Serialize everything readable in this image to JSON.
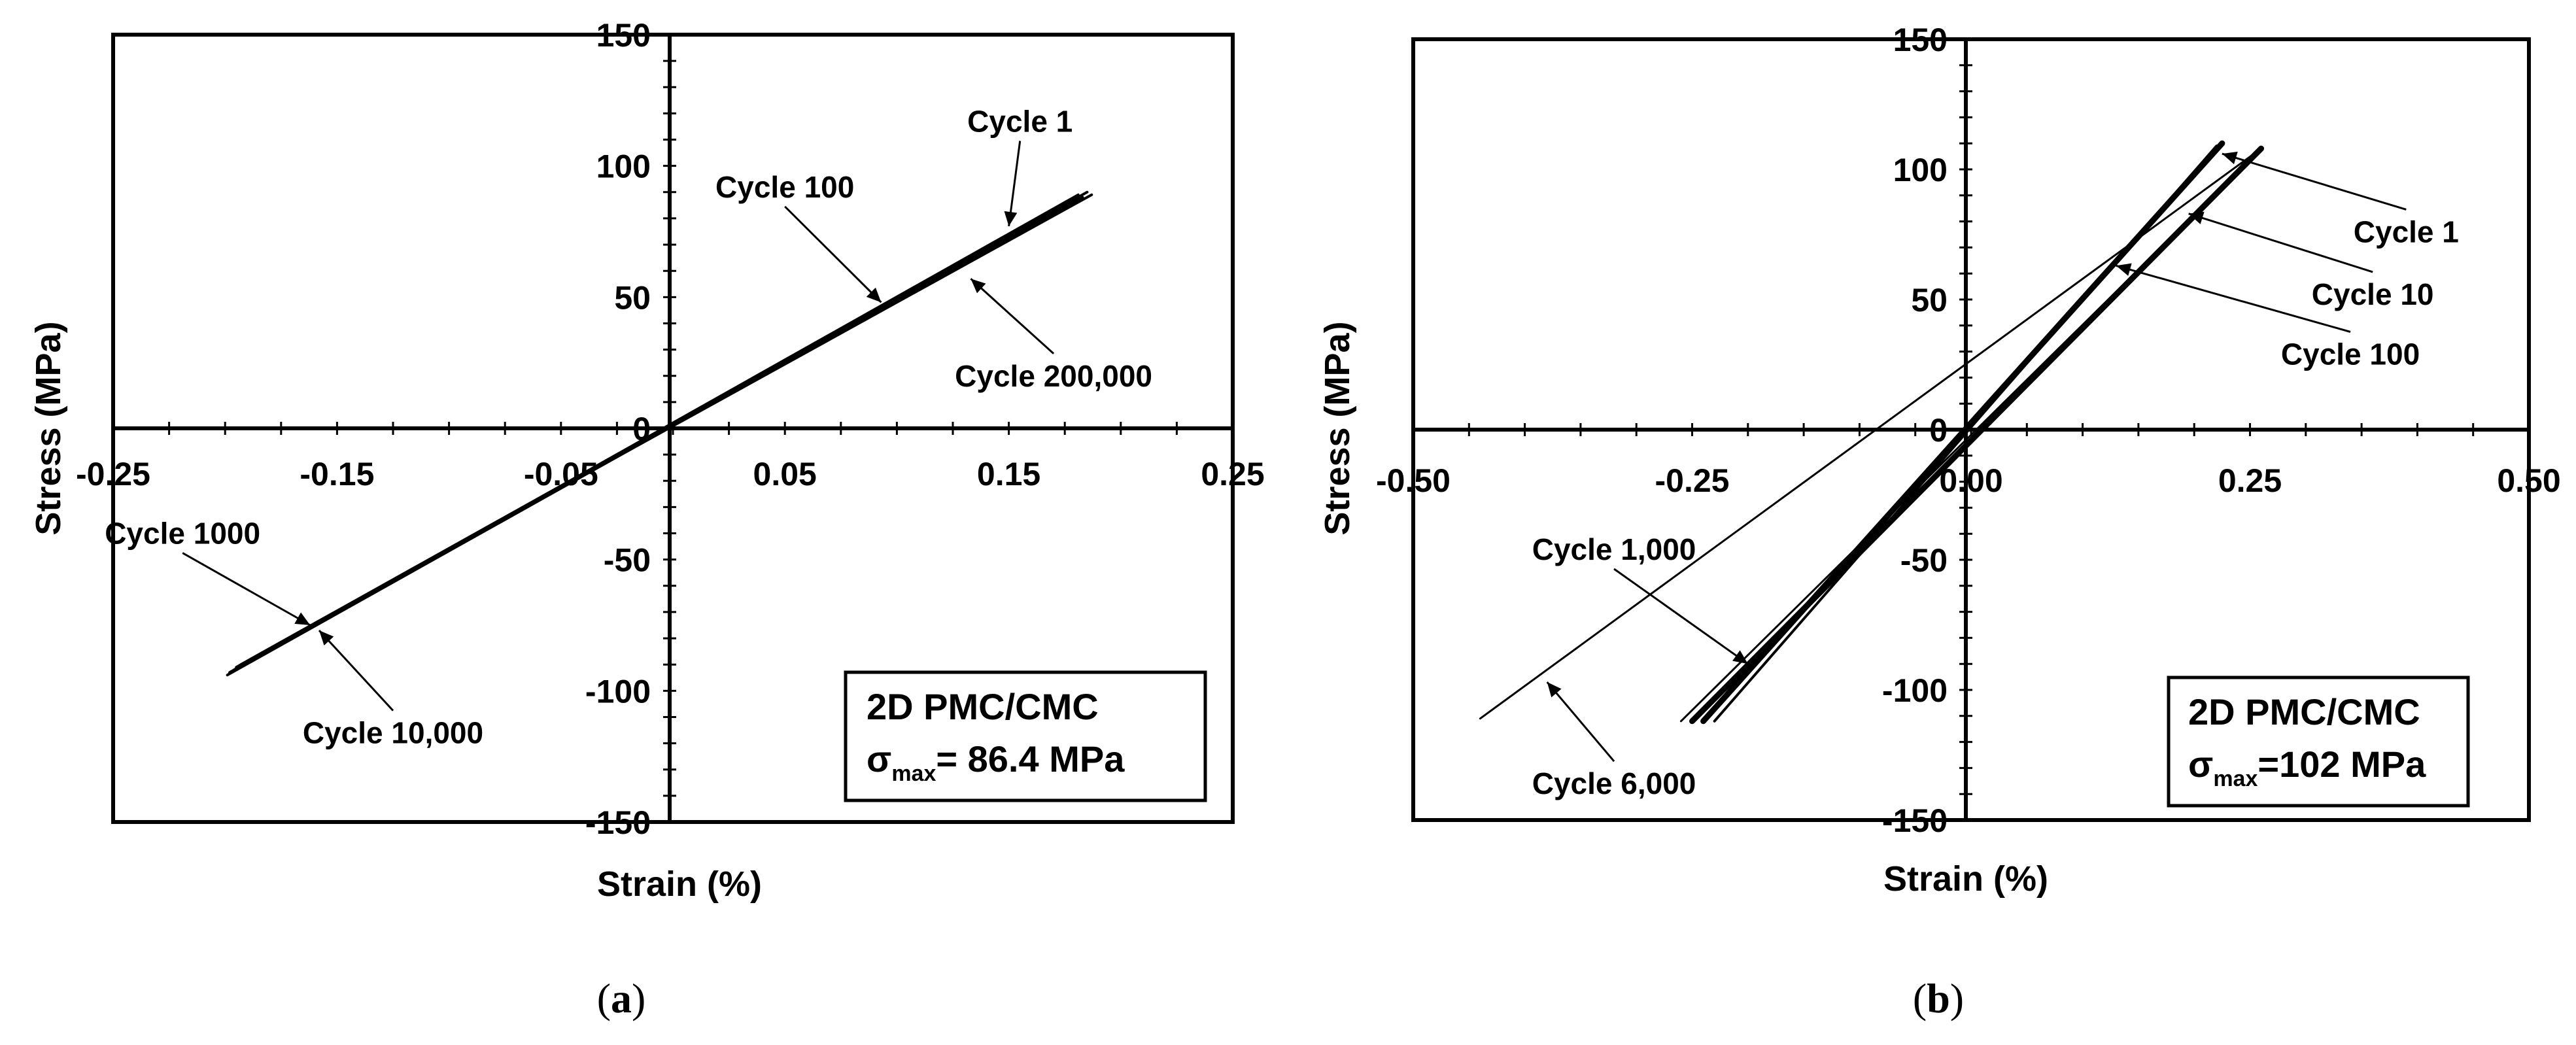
{
  "chart_data": [
    {
      "type": "line",
      "panel_label": "a",
      "xlabel": "Strain (%)",
      "ylabel": "Stress (MPa)",
      "xlim": [
        -0.25,
        0.25
      ],
      "ylim": [
        -150,
        150
      ],
      "x_ticks": [
        -0.25,
        -0.15,
        -0.05,
        0.05,
        0.15,
        0.25
      ],
      "x_tick_labels": [
        "-0.25",
        "-0.15",
        "-0.05",
        "0.05",
        "0.15",
        "0.25"
      ],
      "y_ticks": [
        150,
        100,
        50,
        0,
        -50,
        -100,
        -150
      ],
      "y_tick_labels": [
        "150",
        "100",
        "50",
        "0",
        "-50",
        "-100",
        "-150"
      ],
      "info_box": {
        "line1": "2D PMC/CMC",
        "sigma": "σ",
        "sub": "max",
        "value": "= 86.4 MPa"
      },
      "series": [
        {
          "name": "Cycle 1",
          "x": [
            -0.193,
            0.185
          ],
          "y": [
            -90,
            90
          ]
        },
        {
          "name": "Cycle 100",
          "x": [
            -0.195,
            0.187
          ],
          "y": [
            -91,
            89
          ]
        },
        {
          "name": "Cycle 1000",
          "x": [
            -0.196,
            0.183
          ],
          "y": [
            -92,
            88
          ]
        },
        {
          "name": "Cycle 10,000",
          "x": [
            -0.198,
            0.181
          ],
          "y": [
            -93,
            89
          ]
        },
        {
          "name": "Cycle 200,000",
          "x": [
            -0.199,
            0.18
          ],
          "y": [
            -94,
            87
          ]
        }
      ],
      "annotations": [
        {
          "text": "Cycle 1",
          "x": 0.155,
          "y": 113,
          "target_x": 0.15,
          "target_y": 77
        },
        {
          "text": "Cycle 100",
          "x": 0.05,
          "y": 88,
          "target_x": 0.093,
          "target_y": 48
        },
        {
          "text": "Cycle 200,000",
          "x": 0.17,
          "y": 16,
          "target_x": 0.133,
          "target_y": 57
        },
        {
          "text": "Cycle 1000",
          "x": -0.219,
          "y": -44,
          "target_x": -0.162,
          "target_y": -75
        },
        {
          "text": "Cycle 10,000",
          "x": -0.125,
          "y": -120,
          "target_x": -0.158,
          "target_y": -77
        }
      ]
    },
    {
      "type": "line",
      "panel_label": "b",
      "xlabel": "Strain (%)",
      "ylabel": "Stress (MPa)",
      "xlim": [
        -0.5,
        0.5
      ],
      "ylim": [
        -150,
        150
      ],
      "x_ticks": [
        -0.5,
        -0.25,
        0,
        0.25,
        0.5
      ],
      "x_tick_labels": [
        "-0.50",
        "-0.25",
        "0.00",
        "0.25",
        "0.50"
      ],
      "y_ticks": [
        150,
        100,
        50,
        0,
        -50,
        -100,
        -150
      ],
      "y_tick_labels": [
        "150",
        "100",
        "50",
        "0",
        "-50",
        "-100",
        "-150"
      ],
      "info_box": {
        "line1": "2D PMC/CMC",
        "sigma": "σ",
        "sub": "max",
        "value": "=102 MPa"
      },
      "series": [
        {
          "name": "Cycle 1",
          "x": [
            -0.23,
            0.22
          ],
          "y": [
            -112,
            109
          ]
        },
        {
          "name": "Cycle 10",
          "x": [
            -0.24,
            0.225
          ],
          "y": [
            -112,
            110
          ]
        },
        {
          "name": "Cycle 100",
          "x": [
            -0.25,
            0.26
          ],
          "y": [
            -112,
            108
          ]
        },
        {
          "name": "Cycle 1,000",
          "x": [
            -0.26,
            0.26
          ],
          "y": [
            -112,
            108
          ]
        },
        {
          "name": "Cycle 6,000",
          "x": [
            -0.44,
            0.26
          ],
          "y": [
            -111,
            108
          ]
        }
      ],
      "annotations": [
        {
          "text": "Cycle 1",
          "x": 0.39,
          "y": 72,
          "target_x": 0.225,
          "target_y": 106
        },
        {
          "text": "Cycle 10",
          "x": 0.36,
          "y": 48,
          "target_x": 0.195,
          "target_y": 83
        },
        {
          "text": "Cycle 100",
          "x": 0.34,
          "y": 25,
          "target_x": 0.13,
          "target_y": 63
        },
        {
          "text": "Cycle 1,000",
          "x": -0.32,
          "y": -50,
          "target_x": -0.2,
          "target_y": -90
        },
        {
          "text": "Cycle 6,000",
          "x": -0.32,
          "y": -140,
          "target_x": -0.38,
          "target_y": -97
        }
      ]
    }
  ]
}
